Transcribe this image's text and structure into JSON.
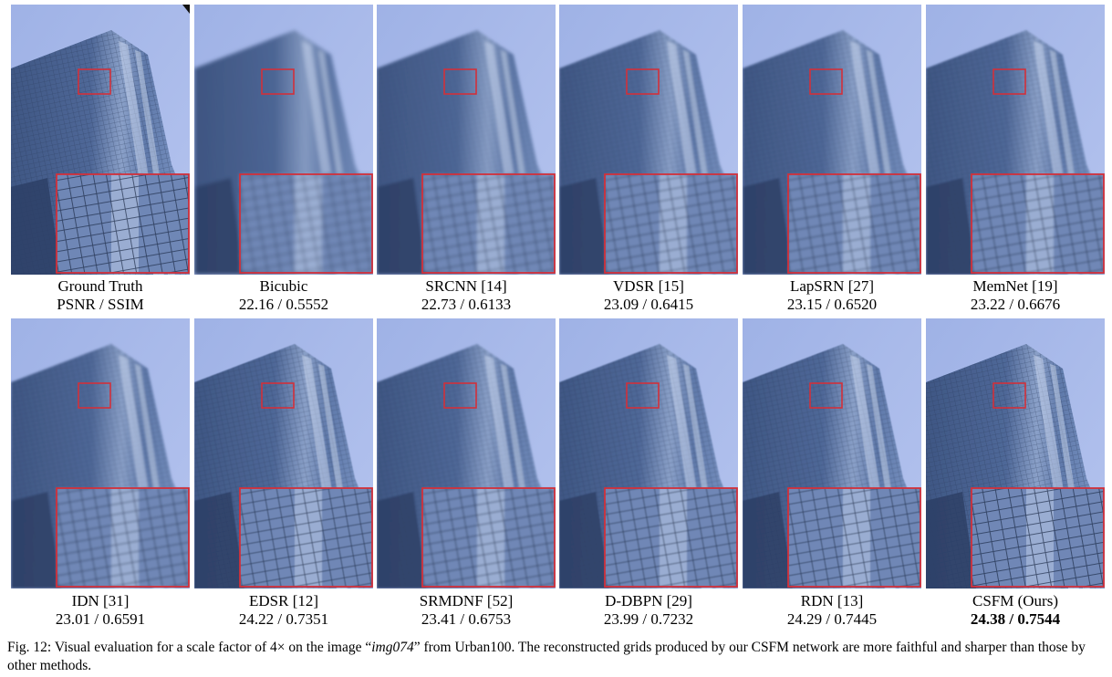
{
  "figure": {
    "colors": {
      "sky": "#b4c3ee",
      "facade": "#4f6898",
      "zoom_box": "#d2303a"
    },
    "panels": [
      {
        "method": "Ground Truth",
        "metric": "PSNR / SSIM",
        "bold": false
      },
      {
        "method": "Bicubic",
        "metric": "22.16 / 0.5552",
        "bold": false
      },
      {
        "method": "SRCNN [14]",
        "metric": "22.73 / 0.6133",
        "bold": false
      },
      {
        "method": "VDSR [15]",
        "metric": "23.09 / 0.6415",
        "bold": false
      },
      {
        "method": "LapSRN [27]",
        "metric": "23.15 / 0.6520",
        "bold": false
      },
      {
        "method": "MemNet [19]",
        "metric": "23.22 / 0.6676",
        "bold": false
      },
      {
        "method": "IDN [31]",
        "metric": "23.01 / 0.6591",
        "bold": false
      },
      {
        "method": "EDSR [12]",
        "metric": "24.22 / 0.7351",
        "bold": false
      },
      {
        "method": "SRMDNF [52]",
        "metric": "23.41 / 0.6753",
        "bold": false
      },
      {
        "method": "D-DBPN [29]",
        "metric": "23.99 / 0.7232",
        "bold": false
      },
      {
        "method": "RDN [13]",
        "metric": "24.29 / 0.7445",
        "bold": false
      },
      {
        "method": "CSFM (Ours)",
        "metric": "24.38 / 0.7544",
        "bold": true
      }
    ],
    "caption": {
      "prefix": "Fig. 12: Visual evaluation for a scale factor of 4× on the image “",
      "image_name": "img074",
      "suffix": "” from Urban100. The reconstructed grids produced by our CSFM network are more faithful and sharper than those by other methods."
    }
  }
}
